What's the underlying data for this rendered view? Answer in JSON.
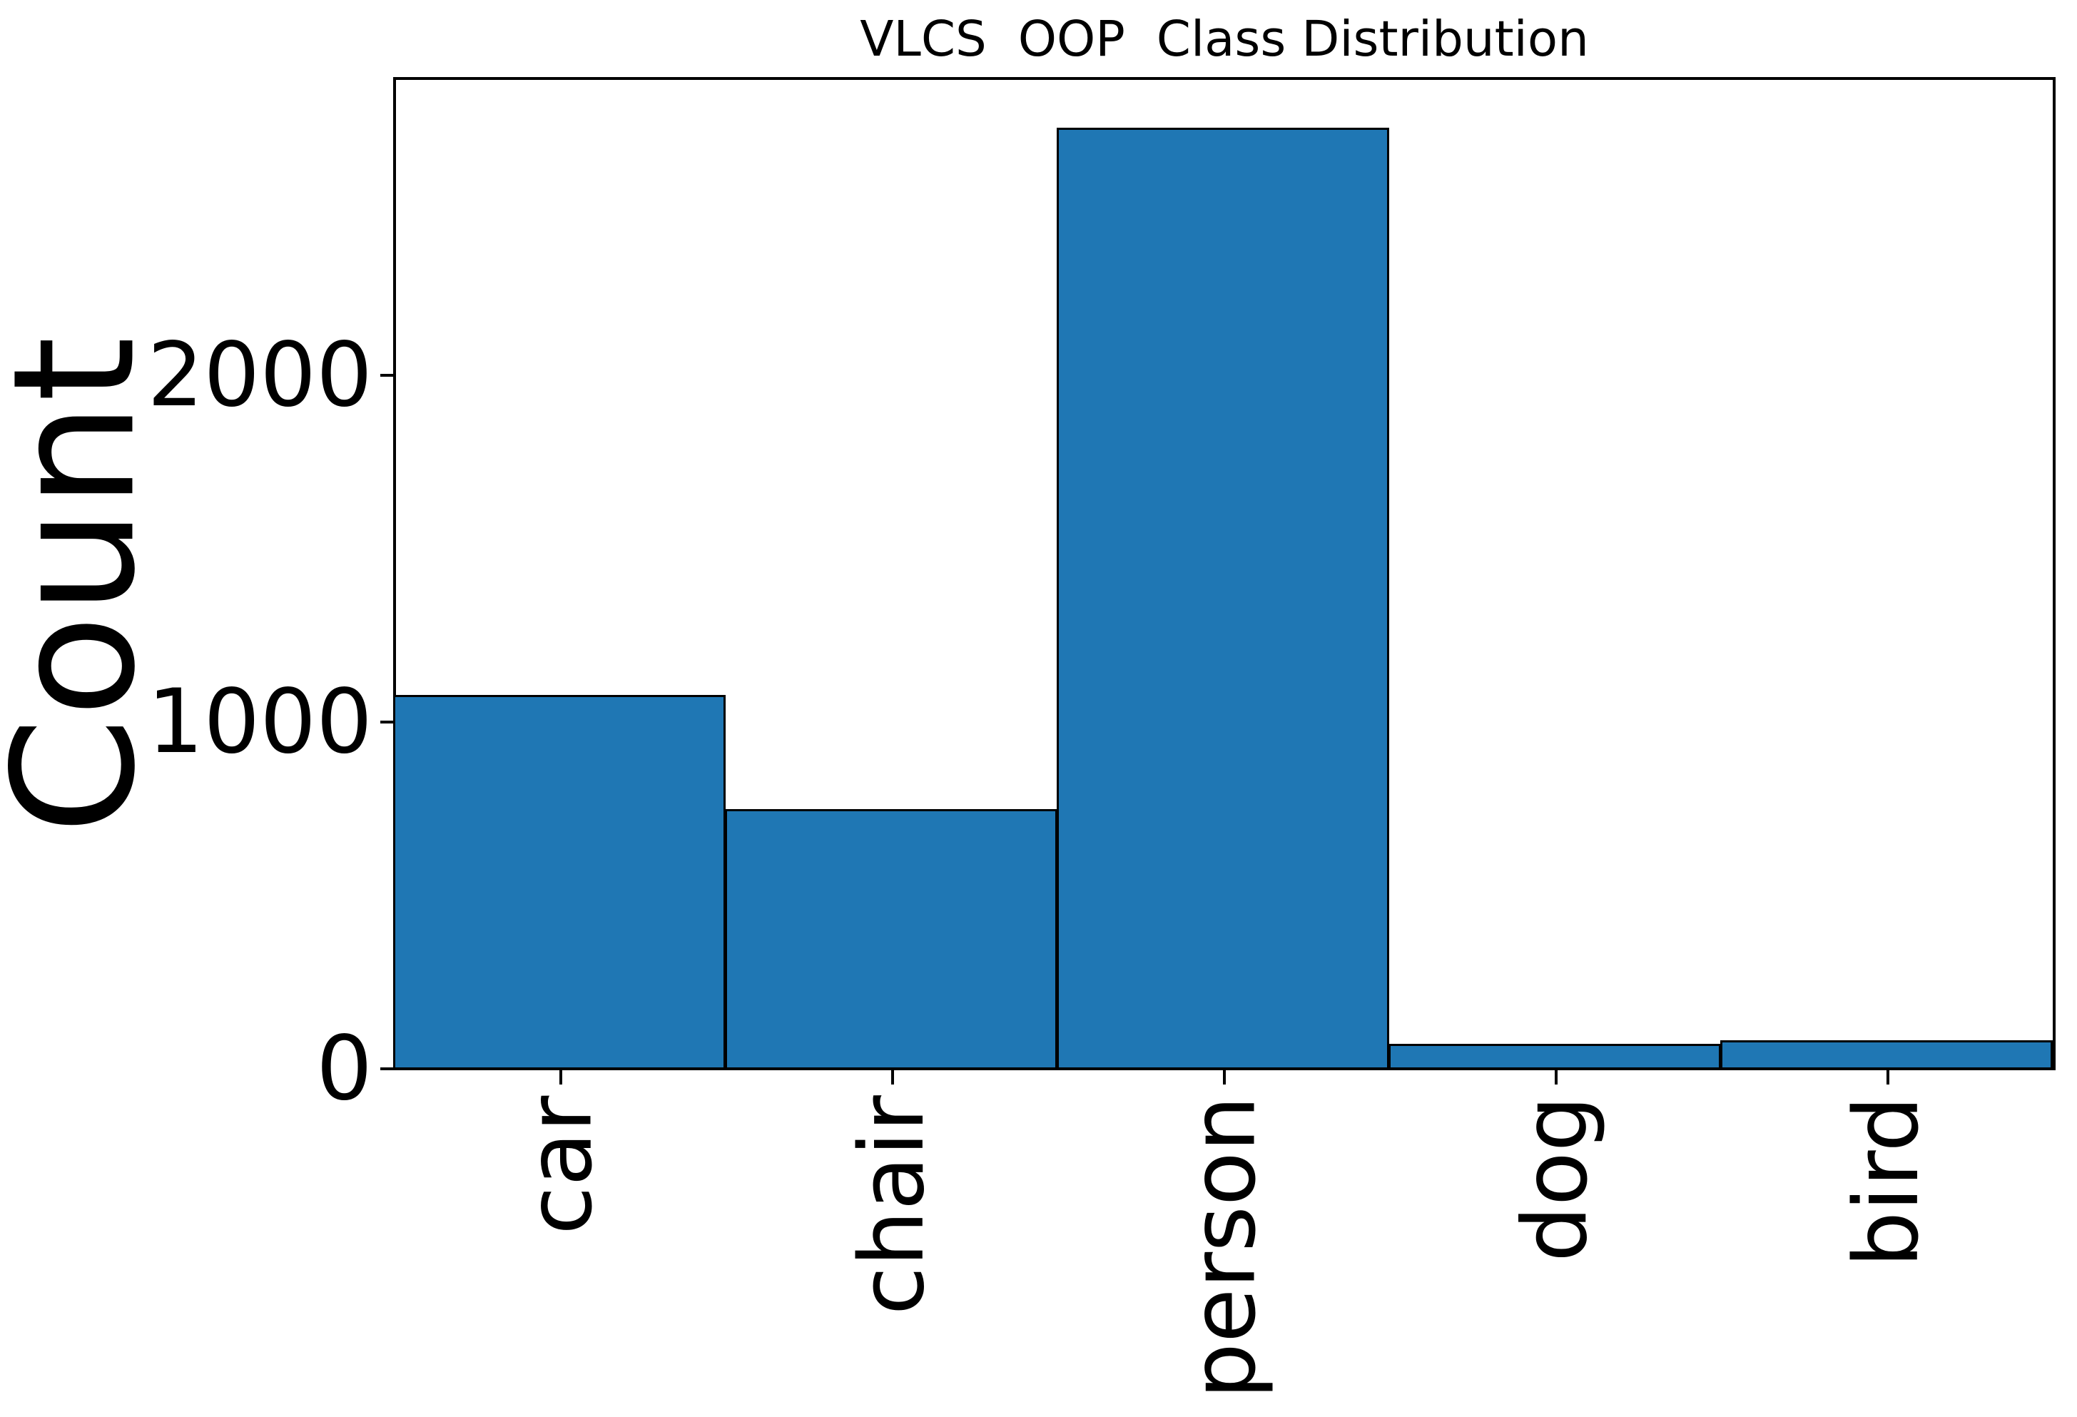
{
  "figure": {
    "background": "#ffffff"
  },
  "chart_data": {
    "type": "bar",
    "title": "VLCS  OOP  Class Distribution",
    "categories": [
      "car",
      "chair",
      "person",
      "dog",
      "bird"
    ],
    "values": [
      1080,
      750,
      2715,
      75,
      85
    ],
    "xlabel": "",
    "ylabel": "Count",
    "ylim": [
      0,
      2855
    ],
    "yticks": [
      0,
      1000,
      2000
    ],
    "ytick_labels": [
      "0",
      "1000",
      "2000"
    ],
    "grid": false,
    "legend": "none",
    "bar_width": 1.0,
    "bar_color": "#1f77b4",
    "bar_edge_color": "#000000",
    "axis_color": "#000000"
  }
}
